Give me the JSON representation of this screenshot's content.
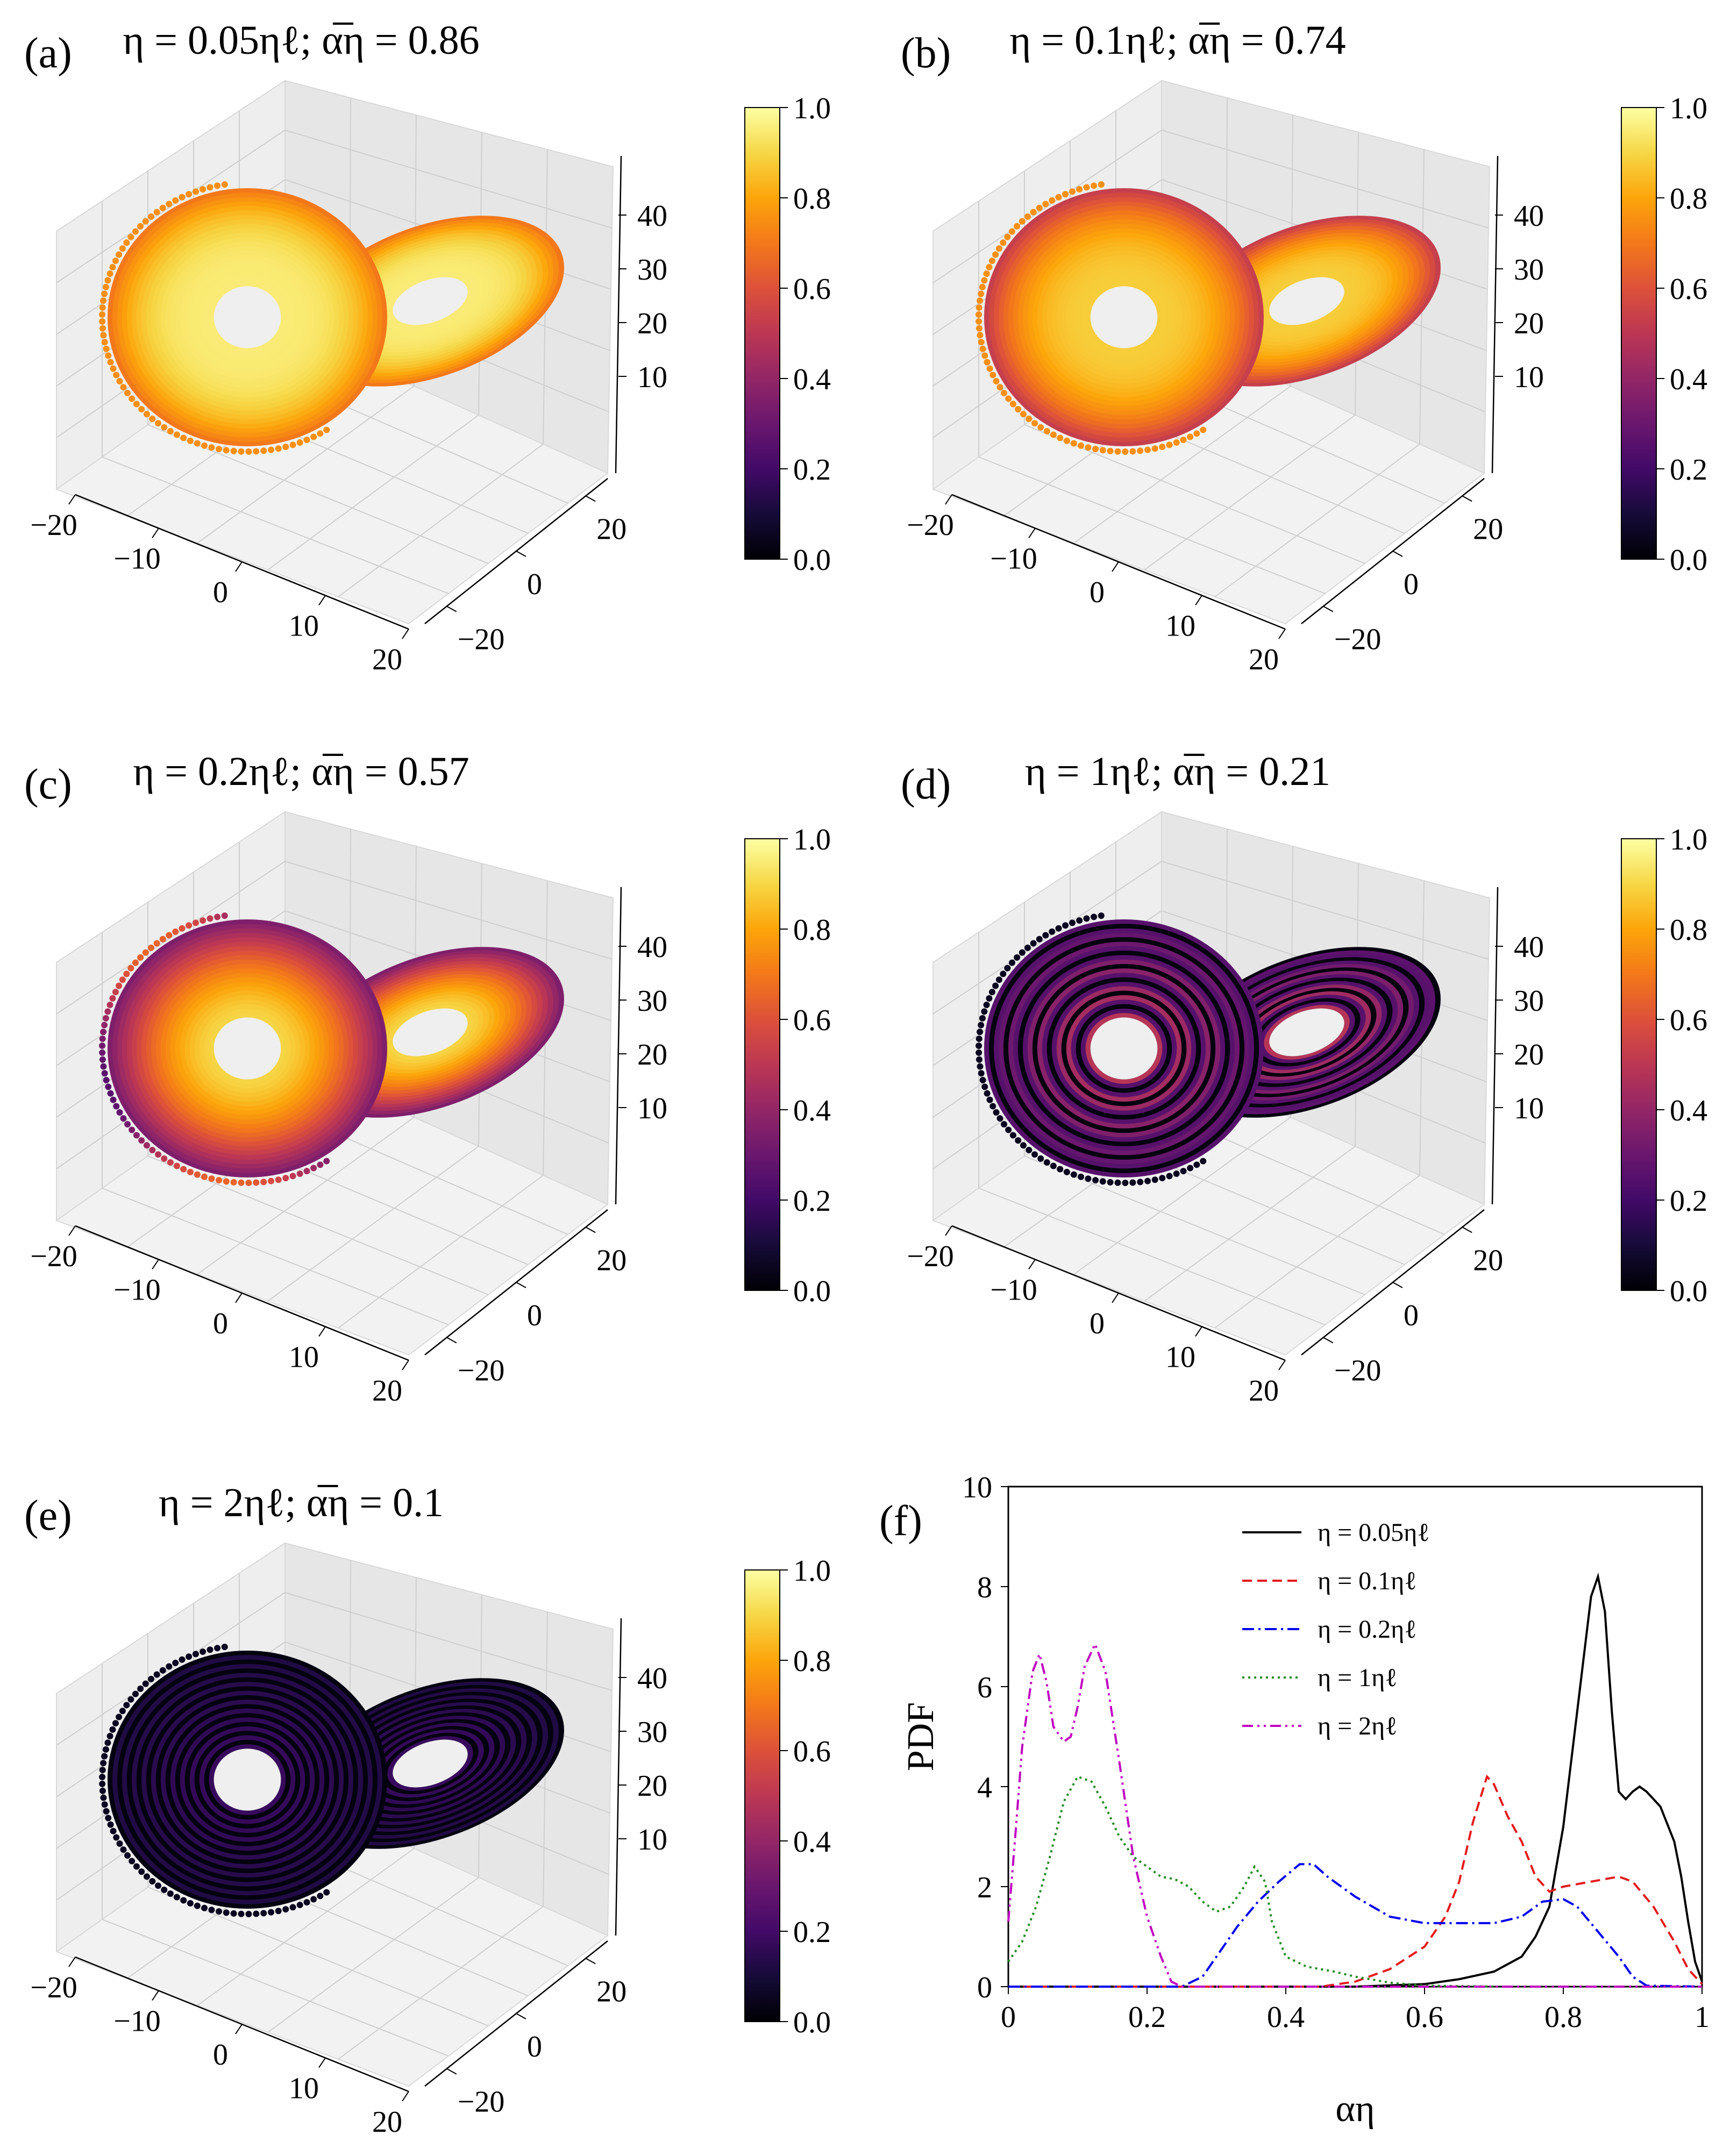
{
  "panels": [
    {
      "label": "(a)",
      "title": "η = 0.05ηℓ; α̅η = 0.86",
      "eta": "η = 0.05ηℓ",
      "alpha": "α̅η = 0.86",
      "colormap": "inferno",
      "mean_alpha": 0.86
    },
    {
      "label": "(b)",
      "title": "η = 0.1ηℓ; α̅η = 0.74",
      "eta": "η = 0.1ηℓ",
      "alpha": "α̅η = 0.74",
      "colormap": "inferno",
      "mean_alpha": 0.74
    },
    {
      "label": "(c)",
      "title": "η = 0.2ηℓ; α̅η = 0.57",
      "eta": "η = 0.2ηℓ",
      "alpha": "α̅η = 0.57",
      "colormap": "inferno",
      "mean_alpha": 0.57
    },
    {
      "label": "(d)",
      "title": "η = 1ηℓ; α̅η = 0.21",
      "eta": "η = 1ηℓ",
      "alpha": "α̅η = 0.21",
      "colormap": "inferno",
      "mean_alpha": 0.21
    },
    {
      "label": "(e)",
      "title": "η = 2ηℓ; α̅η = 0.1",
      "eta": "η = 2ηℓ",
      "alpha": "α̅η = 0.1",
      "colormap": "inferno",
      "mean_alpha": 0.1
    }
  ],
  "axes3d": {
    "x_ticks": [
      "−20",
      "−10",
      "0",
      "10",
      "20"
    ],
    "y_ticks": [
      "−20",
      "0",
      "20"
    ],
    "z_ticks": [
      "10",
      "20",
      "30",
      "40"
    ]
  },
  "colorbar": {
    "ticks": [
      "0.0",
      "0.2",
      "0.4",
      "0.6",
      "0.8",
      "1.0"
    ],
    "range": [
      0,
      1
    ]
  },
  "chart_data": {
    "label": "(f)",
    "type": "line",
    "xlabel": "αη",
    "ylabel": "PDF",
    "xlim": [
      0,
      1
    ],
    "ylim": [
      0,
      10
    ],
    "x_ticks": [
      "0",
      "0.2",
      "0.4",
      "0.6",
      "0.8",
      "1"
    ],
    "y_ticks": [
      "0",
      "2",
      "4",
      "6",
      "8",
      "10"
    ],
    "legend_position": "top-right",
    "series": [
      {
        "name": "η = 0.05ηℓ",
        "color": "#000000",
        "dash": "solid",
        "points": [
          [
            0,
            0
          ],
          [
            0.5,
            0
          ],
          [
            0.6,
            0.05
          ],
          [
            0.65,
            0.15
          ],
          [
            0.7,
            0.3
          ],
          [
            0.74,
            0.6
          ],
          [
            0.76,
            1.0
          ],
          [
            0.78,
            1.6
          ],
          [
            0.8,
            3.2
          ],
          [
            0.82,
            5.5
          ],
          [
            0.84,
            7.8
          ],
          [
            0.85,
            8.2
          ],
          [
            0.86,
            7.5
          ],
          [
            0.87,
            5.5
          ],
          [
            0.88,
            3.9
          ],
          [
            0.89,
            3.75
          ],
          [
            0.9,
            3.9
          ],
          [
            0.91,
            4.0
          ],
          [
            0.92,
            3.9
          ],
          [
            0.94,
            3.6
          ],
          [
            0.96,
            2.9
          ],
          [
            0.97,
            2.2
          ],
          [
            0.98,
            1.3
          ],
          [
            0.99,
            0.5
          ],
          [
            1.0,
            0.1
          ]
        ]
      },
      {
        "name": "η = 0.1ηℓ",
        "color": "#e41a1c",
        "dash": "dashed",
        "points": [
          [
            0,
            0
          ],
          [
            0.45,
            0
          ],
          [
            0.5,
            0.1
          ],
          [
            0.55,
            0.35
          ],
          [
            0.6,
            0.8
          ],
          [
            0.63,
            1.4
          ],
          [
            0.65,
            2.1
          ],
          [
            0.67,
            3.3
          ],
          [
            0.69,
            4.2
          ],
          [
            0.7,
            4.05
          ],
          [
            0.72,
            3.4
          ],
          [
            0.74,
            2.9
          ],
          [
            0.76,
            2.2
          ],
          [
            0.78,
            1.9
          ],
          [
            0.8,
            2.0
          ],
          [
            0.84,
            2.1
          ],
          [
            0.88,
            2.2
          ],
          [
            0.9,
            2.1
          ],
          [
            0.93,
            1.6
          ],
          [
            0.96,
            0.9
          ],
          [
            0.98,
            0.35
          ],
          [
            1.0,
            0.05
          ]
        ]
      },
      {
        "name": "η = 0.2ηℓ",
        "color": "#0000ee",
        "dash": "dashdot",
        "points": [
          [
            0,
            0
          ],
          [
            0.25,
            0
          ],
          [
            0.28,
            0.2
          ],
          [
            0.3,
            0.6
          ],
          [
            0.33,
            1.2
          ],
          [
            0.36,
            1.7
          ],
          [
            0.39,
            2.1
          ],
          [
            0.42,
            2.45
          ],
          [
            0.44,
            2.45
          ],
          [
            0.46,
            2.2
          ],
          [
            0.5,
            1.8
          ],
          [
            0.55,
            1.4
          ],
          [
            0.6,
            1.27
          ],
          [
            0.7,
            1.27
          ],
          [
            0.74,
            1.4
          ],
          [
            0.77,
            1.7
          ],
          [
            0.8,
            1.75
          ],
          [
            0.82,
            1.6
          ],
          [
            0.85,
            1.1
          ],
          [
            0.88,
            0.6
          ],
          [
            0.9,
            0.2
          ],
          [
            0.92,
            0.02
          ],
          [
            1.0,
            0
          ]
        ]
      },
      {
        "name": "η = 1ηℓ",
        "color": "#228b22",
        "dash": "dotted",
        "points": [
          [
            0,
            0.5
          ],
          [
            0.02,
            0.9
          ],
          [
            0.04,
            1.6
          ],
          [
            0.06,
            2.6
          ],
          [
            0.08,
            3.7
          ],
          [
            0.1,
            4.2
          ],
          [
            0.12,
            4.1
          ],
          [
            0.14,
            3.6
          ],
          [
            0.16,
            3.0
          ],
          [
            0.18,
            2.6
          ],
          [
            0.2,
            2.4
          ],
          [
            0.22,
            2.2
          ],
          [
            0.24,
            2.15
          ],
          [
            0.26,
            2.0
          ],
          [
            0.28,
            1.7
          ],
          [
            0.3,
            1.5
          ],
          [
            0.32,
            1.6
          ],
          [
            0.34,
            2.0
          ],
          [
            0.355,
            2.4
          ],
          [
            0.37,
            2.1
          ],
          [
            0.38,
            1.3
          ],
          [
            0.4,
            0.6
          ],
          [
            0.43,
            0.4
          ],
          [
            0.47,
            0.3
          ],
          [
            0.5,
            0.2
          ],
          [
            0.55,
            0.08
          ],
          [
            0.6,
            0.02
          ],
          [
            0.7,
            0
          ]
        ]
      },
      {
        "name": "η = 2ηℓ",
        "color": "#c000c0",
        "dash": "dashdotdot",
        "points": [
          [
            0,
            1.3
          ],
          [
            0.01,
            3.0
          ],
          [
            0.02,
            4.8
          ],
          [
            0.035,
            6.3
          ],
          [
            0.045,
            6.65
          ],
          [
            0.055,
            6.1
          ],
          [
            0.065,
            5.2
          ],
          [
            0.08,
            4.9
          ],
          [
            0.09,
            5.0
          ],
          [
            0.1,
            5.6
          ],
          [
            0.11,
            6.4
          ],
          [
            0.125,
            6.85
          ],
          [
            0.14,
            6.3
          ],
          [
            0.16,
            4.5
          ],
          [
            0.18,
            2.6
          ],
          [
            0.2,
            1.4
          ],
          [
            0.22,
            0.6
          ],
          [
            0.235,
            0.1
          ],
          [
            0.25,
            0
          ],
          [
            1.0,
            0
          ]
        ]
      }
    ]
  }
}
